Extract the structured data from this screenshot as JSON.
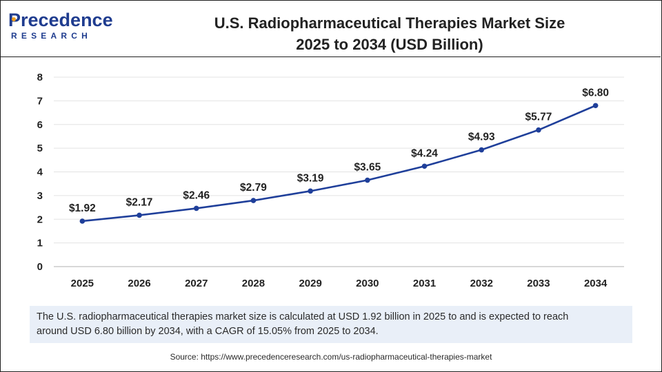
{
  "brand": {
    "name": "recedence",
    "initial": "P",
    "sub": "RESEARCH"
  },
  "header": {
    "title_line1": "U.S. Radiopharmaceutical Therapies Market Size",
    "title_line2": "2025 to 2034 (USD Billion)"
  },
  "chart_data": {
    "type": "line",
    "title": "U.S. Radiopharmaceutical Therapies Market Size 2025 to 2034 (USD Billion)",
    "x": [
      "2025",
      "2026",
      "2027",
      "2028",
      "2029",
      "2030",
      "2031",
      "2032",
      "2033",
      "2034"
    ],
    "series": [
      {
        "name": "Market Size (USD Billion)",
        "values": [
          1.92,
          2.17,
          2.46,
          2.79,
          3.19,
          3.65,
          4.24,
          4.93,
          5.77,
          6.8
        ],
        "labels": [
          "$1.92",
          "$2.17",
          "$2.46",
          "$2.79",
          "$3.19",
          "$3.65",
          "$4.24",
          "$4.93",
          "$5.77",
          "$6.80"
        ]
      }
    ],
    "yticks": [
      0,
      1,
      2,
      3,
      4,
      5,
      6,
      7,
      8
    ],
    "ylim": [
      0,
      8
    ],
    "xlabel": "",
    "ylabel": "",
    "grid": true,
    "colors": {
      "line": "#1f3f9a",
      "grid": "#e3e3e3",
      "axis": "#bfbfbf",
      "text": "#222222"
    }
  },
  "note": {
    "text_line1": "The U.S. radiopharmaceutical therapies market size is calculated at USD 1.92 billion in 2025 to and is expected to reach",
    "text_line2": "around USD 6.80 billion by 2034, with a CAGR of 15.05% from 2025 to 2034."
  },
  "source": "Source: https://www.precedenceresearch.com/us-radiopharmaceutical-therapies-market"
}
